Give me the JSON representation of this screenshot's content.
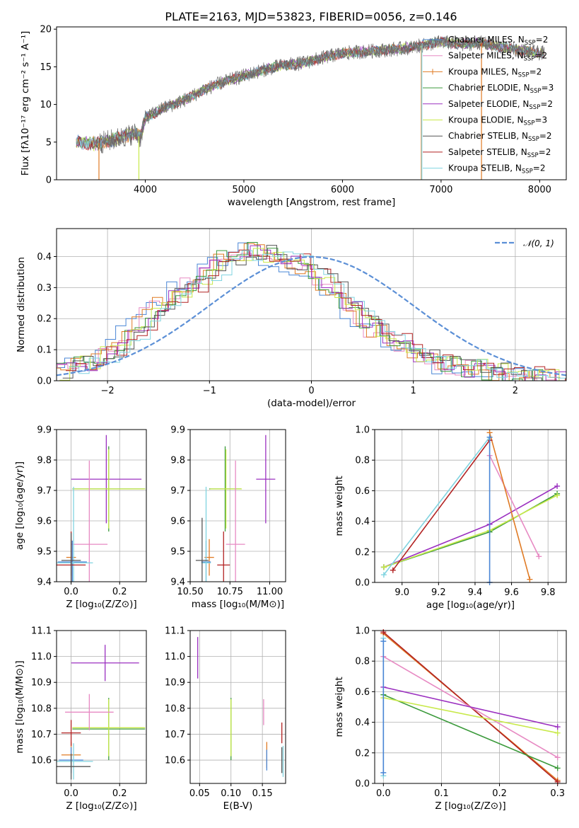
{
  "page": {
    "title": "PLATE=2163, MJD=53823, FIBERID=0056, z=0.146"
  },
  "colors": {
    "chabrier_miles": "#4a86d6",
    "salpeter_miles": "#e78ac3",
    "kroupa_miles": "#e07b25",
    "chabrier_elodie": "#3b9a3b",
    "salpeter_elodie": "#9b30c0",
    "kroupa_elodie": "#c8e94a",
    "chabrier_stelib": "#555555",
    "salpeter_stelib": "#b22222",
    "kroupa_stelib": "#80d4e0",
    "normal": "#5b8fd6"
  },
  "chart_data": [
    {
      "id": "spectrum",
      "type": "line",
      "xlabel": "wavelength [Angstrom, rest frame]",
      "ylabel": "Flux [fλ10⁻¹⁷ erg cm⁻² s⁻¹ A⁻¹]",
      "xlim": [
        3100,
        8270
      ],
      "ylim": [
        0,
        20.3
      ],
      "xticks": [
        "4000",
        "5000",
        "6000",
        "7000",
        "8000"
      ],
      "yticks": [
        "0",
        "5",
        "10",
        "15",
        "20"
      ],
      "legend_position": "top-right",
      "legend": [
        {
          "name": "Chabrier MILES, N",
          "sub": "SSP",
          "suffix": "=2",
          "color": "#4a86d6"
        },
        {
          "name": "Salpeter MILES, N",
          "sub": "SSP",
          "suffix": "=2",
          "color": "#e78ac3"
        },
        {
          "name": "Kroupa MILES, N",
          "sub": "SSP",
          "suffix": "=2",
          "color": "#e07b25"
        },
        {
          "name": "Chabrier ELODIE, N",
          "sub": "SSP",
          "suffix": "=3",
          "color": "#3b9a3b"
        },
        {
          "name": "Salpeter ELODIE, N",
          "sub": "SSP",
          "suffix": "=2",
          "color": "#9b30c0"
        },
        {
          "name": "Kroupa ELODIE, N",
          "sub": "SSP",
          "suffix": "=3",
          "color": "#c8e94a"
        },
        {
          "name": "Chabrier STELIB, N",
          "sub": "SSP",
          "suffix": "=2",
          "color": "#555555"
        },
        {
          "name": "Salpeter STELIB, N",
          "sub": "SSP",
          "suffix": "=2",
          "color": "#b22222"
        },
        {
          "name": "Kroupa STELIB, N",
          "sub": "SSP",
          "suffix": "=2",
          "color": "#80d4e0"
        }
      ],
      "continuum": [
        [
          3300,
          5.0
        ],
        [
          3500,
          4.8
        ],
        [
          3700,
          5.4
        ],
        [
          3900,
          6.2
        ],
        [
          3950,
          5.6
        ],
        [
          4000,
          8.2
        ],
        [
          4200,
          9.6
        ],
        [
          4400,
          10.6
        ],
        [
          4600,
          12.0
        ],
        [
          4800,
          13.0
        ],
        [
          5000,
          13.8
        ],
        [
          5200,
          14.6
        ],
        [
          5400,
          15.2
        ],
        [
          5600,
          15.5
        ],
        [
          5800,
          16.2
        ],
        [
          6000,
          16.8
        ],
        [
          6200,
          17.0
        ],
        [
          6400,
          17.2
        ],
        [
          6600,
          17.4
        ],
        [
          6800,
          17.8
        ],
        [
          7000,
          18.3
        ],
        [
          7200,
          18.0
        ],
        [
          7400,
          18.2
        ],
        [
          7600,
          17.6
        ],
        [
          7800,
          17.2
        ],
        [
          8000,
          16.8
        ]
      ],
      "model_range": [
        3300,
        8050
      ],
      "drops": [
        {
          "x": 3530,
          "color": "#e07b25"
        },
        {
          "x": 3935,
          "color": "#c8e94a"
        },
        {
          "x": 6800,
          "color": "#e07b25"
        },
        {
          "x": 6805,
          "color": "#80d4e0"
        },
        {
          "x": 7410,
          "color": "#e07b25"
        }
      ]
    },
    {
      "id": "residuals",
      "type": "area",
      "xlabel": "(data-model)/error",
      "ylabel": "Normed distribution",
      "xlim": [
        -2.5,
        2.5
      ],
      "ylim": [
        0,
        0.49
      ],
      "xticks": [
        "−2",
        "−1",
        "0",
        "1",
        "2"
      ],
      "yticks": [
        "0.0",
        "0.1",
        "0.2",
        "0.3",
        "0.4"
      ],
      "legend_position": "top-right",
      "normal_label": "𝒩(0, 1)",
      "bin_edges_start": -2.5,
      "bin_width": 0.1,
      "base_hist": [
        0.03,
        0.04,
        0.05,
        0.06,
        0.08,
        0.1,
        0.12,
        0.15,
        0.18,
        0.21,
        0.24,
        0.27,
        0.29,
        0.31,
        0.34,
        0.37,
        0.39,
        0.4,
        0.41,
        0.42,
        0.41,
        0.4,
        0.39,
        0.38,
        0.37,
        0.35,
        0.32,
        0.29,
        0.26,
        0.23,
        0.2,
        0.17,
        0.15,
        0.13,
        0.11,
        0.09,
        0.07,
        0.06,
        0.05,
        0.05,
        0.04,
        0.04,
        0.03,
        0.03,
        0.02,
        0.02,
        0.02,
        0.01,
        0.01,
        0.01
      ]
    },
    {
      "id": "age-vs-Z",
      "type": "scatter",
      "xlabel": "Z [log₁₀(Z/Z⊙)]",
      "ylabel": "age  [log₁₀(age/yr)]",
      "xlim": [
        -0.06,
        0.31
      ],
      "ylim": [
        9.4,
        9.9
      ],
      "xticks": [
        "0.0",
        "0.2"
      ],
      "yticks": [
        "9.4",
        "9.5",
        "9.6",
        "9.7",
        "9.8",
        "9.9"
      ],
      "points": [
        {
          "x": 0.145,
          "xerr": 0.145,
          "y": 9.737,
          "yerr": 0.145,
          "color": "#9b30c0"
        },
        {
          "x": 0.155,
          "xerr": 0.15,
          "y": 9.705,
          "yerr": 0.14,
          "color": "#3b9a3b"
        },
        {
          "x": 0.155,
          "xerr": 0.15,
          "y": 9.705,
          "yerr": 0.13,
          "color": "#c8e94a"
        },
        {
          "x": 0.075,
          "xerr": 0.075,
          "y": 9.523,
          "yerr": 0.275,
          "color": "#e78ac3"
        },
        {
          "x": 0.0,
          "xerr": 0.02,
          "y": 9.48,
          "yerr": 0.06,
          "color": "#e07b25"
        },
        {
          "x": 0.005,
          "xerr": 0.06,
          "y": 9.465,
          "yerr": 0.07,
          "color": "#4a86d6"
        },
        {
          "x": 0.01,
          "xerr": 0.08,
          "y": 9.462,
          "yerr": 0.25,
          "color": "#80d4e0"
        },
        {
          "x": 0.0,
          "xerr": 0.06,
          "y": 9.455,
          "yerr": 0.11,
          "color": "#b22222"
        },
        {
          "x": 0.0,
          "xerr": 0.04,
          "y": 9.47,
          "yerr": 0.09,
          "color": "#555555"
        }
      ]
    },
    {
      "id": "age-vs-mass",
      "type": "scatter",
      "xlabel": "mass [log₁₀(M/M⊙)]",
      "ylabel": "",
      "xlim": [
        10.5,
        11.1
      ],
      "ylim": [
        9.4,
        9.9
      ],
      "xticks": [
        "10.50",
        "10.75",
        "11.00"
      ],
      "yticks": [
        "9.4",
        "9.5",
        "9.6",
        "9.7",
        "9.8",
        "9.9"
      ],
      "points": [
        {
          "x": 10.975,
          "xerr": 0.06,
          "y": 9.737,
          "yerr": 0.145,
          "color": "#9b30c0"
        },
        {
          "x": 10.72,
          "xerr": 0.1,
          "y": 9.705,
          "yerr": 0.14,
          "color": "#3b9a3b"
        },
        {
          "x": 10.725,
          "xerr": 0.1,
          "y": 9.705,
          "yerr": 0.13,
          "color": "#c8e94a"
        },
        {
          "x": 10.785,
          "xerr": 0.06,
          "y": 9.523,
          "yerr": 0.275,
          "color": "#e78ac3"
        },
        {
          "x": 10.62,
          "xerr": 0.03,
          "y": 9.48,
          "yerr": 0.06,
          "color": "#e07b25"
        },
        {
          "x": 10.6,
          "xerr": 0.03,
          "y": 9.465,
          "yerr": 0.07,
          "color": "#4a86d6"
        },
        {
          "x": 10.6,
          "xerr": 0.03,
          "y": 9.462,
          "yerr": 0.25,
          "color": "#80d4e0"
        },
        {
          "x": 10.71,
          "xerr": 0.04,
          "y": 9.455,
          "yerr": 0.11,
          "color": "#b22222"
        },
        {
          "x": 10.575,
          "xerr": 0.04,
          "y": 9.47,
          "yerr": 0.14,
          "color": "#555555"
        }
      ]
    },
    {
      "id": "weight-vs-age",
      "type": "line",
      "xlabel": "age  [log₁₀(age/yr)]",
      "ylabel": "mass weight",
      "xlim": [
        8.85,
        9.9
      ],
      "ylim": [
        0,
        1
      ],
      "xticks": [
        "9.0",
        "9.2",
        "9.4",
        "9.6",
        "9.8"
      ],
      "yticks": [
        "0.0",
        "0.2",
        "0.4",
        "0.6",
        "0.8",
        "1.0"
      ],
      "series": [
        {
          "color": "#9b30c0",
          "points": [
            [
              8.9,
              0.1
            ],
            [
              9.48,
              0.38
            ],
            [
              9.85,
              0.63
            ]
          ]
        },
        {
          "color": "#3b9a3b",
          "points": [
            [
              8.9,
              0.1
            ],
            [
              9.48,
              0.33
            ],
            [
              9.85,
              0.58
            ]
          ]
        },
        {
          "color": "#c8e94a",
          "points": [
            [
              8.9,
              0.1
            ],
            [
              9.48,
              0.34
            ],
            [
              9.85,
              0.57
            ]
          ]
        },
        {
          "color": "#e78ac3",
          "points": [
            [
              9.48,
              0.83
            ],
            [
              9.75,
              0.17
            ]
          ]
        },
        {
          "color": "#e07b25",
          "points": [
            [
              9.48,
              0.98
            ],
            [
              9.7,
              0.02
            ]
          ]
        },
        {
          "color": "#b22222",
          "points": [
            [
              8.95,
              0.08
            ],
            [
              9.48,
              0.93
            ]
          ]
        },
        {
          "color": "#80d4e0",
          "points": [
            [
              8.9,
              0.05
            ],
            [
              9.48,
              0.95
            ]
          ]
        },
        {
          "color": "#4a86d6",
          "points": [
            [
              9.48,
              0.0
            ],
            [
              9.48,
              0.95
            ]
          ]
        }
      ]
    },
    {
      "id": "mass-vs-Z",
      "type": "scatter",
      "xlabel": "Z [log₁₀(Z/Z⊙)]",
      "ylabel": "mass [log₁₀(M/M⊙)]",
      "xlim": [
        -0.06,
        0.31
      ],
      "ylim": [
        10.51,
        11.1
      ],
      "xticks": [
        "0.0",
        "0.2"
      ],
      "yticks": [
        "10.6",
        "10.7",
        "10.8",
        "10.9",
        "11.0",
        "11.1"
      ],
      "points": [
        {
          "x": 0.14,
          "xerr": 0.14,
          "y": 10.975,
          "yerr": 0.07,
          "color": "#9b30c0"
        },
        {
          "x": 0.155,
          "xerr": 0.15,
          "y": 10.72,
          "yerr": 0.12,
          "color": "#3b9a3b"
        },
        {
          "x": 0.155,
          "xerr": 0.15,
          "y": 10.725,
          "yerr": 0.11,
          "color": "#c8e94a"
        },
        {
          "x": 0.075,
          "xerr": 0.1,
          "y": 10.785,
          "yerr": 0.07,
          "color": "#e78ac3"
        },
        {
          "x": 0.0,
          "xerr": 0.04,
          "y": 10.62,
          "yerr": 0.05,
          "color": "#e07b25"
        },
        {
          "x": 0.0,
          "xerr": 0.05,
          "y": 10.6,
          "yerr": 0.05,
          "color": "#4a86d6"
        },
        {
          "x": 0.01,
          "xerr": 0.08,
          "y": 10.595,
          "yerr": 0.07,
          "color": "#80d4e0"
        },
        {
          "x": 0.0,
          "xerr": 0.04,
          "y": 10.705,
          "yerr": 0.05,
          "color": "#b22222"
        },
        {
          "x": 0.0,
          "xerr": 0.08,
          "y": 10.575,
          "yerr": 0.05,
          "color": "#555555"
        }
      ]
    },
    {
      "id": "mass-vs-ebv",
      "type": "scatter",
      "xlabel": "E(B-V)",
      "ylabel": "",
      "xlim": [
        0.035,
        0.187
      ],
      "ylim": [
        10.51,
        11.1
      ],
      "xticks": [
        "0.05",
        "0.10",
        "0.15"
      ],
      "yticks": [
        "10.6",
        "10.7",
        "10.8",
        "10.9",
        "11.0",
        "11.1"
      ],
      "points": [
        {
          "x": 0.047,
          "xerr": 0.0,
          "y": 10.995,
          "yerr": 0.08,
          "color": "#9b30c0"
        },
        {
          "x": 0.1,
          "xerr": 0.0,
          "y": 10.72,
          "yerr": 0.12,
          "color": "#3b9a3b"
        },
        {
          "x": 0.1,
          "xerr": 0.0,
          "y": 10.725,
          "yerr": 0.11,
          "color": "#c8e94a"
        },
        {
          "x": 0.152,
          "xerr": 0.0,
          "y": 10.785,
          "yerr": 0.05,
          "color": "#e78ac3"
        },
        {
          "x": 0.157,
          "xerr": 0.0,
          "y": 10.62,
          "yerr": 0.05,
          "color": "#e07b25"
        },
        {
          "x": 0.157,
          "xerr": 0.0,
          "y": 10.6,
          "yerr": 0.04,
          "color": "#4a86d6"
        },
        {
          "x": 0.183,
          "xerr": 0.0,
          "y": 10.595,
          "yerr": 0.06,
          "color": "#80d4e0"
        },
        {
          "x": 0.181,
          "xerr": 0.0,
          "y": 10.705,
          "yerr": 0.04,
          "color": "#b22222"
        },
        {
          "x": 0.181,
          "xerr": 0.0,
          "y": 10.6,
          "yerr": 0.05,
          "color": "#555555"
        }
      ]
    },
    {
      "id": "weight-vs-Z",
      "type": "line",
      "xlabel": "Z [log₁₀(Z/Z⊙)]",
      "ylabel": "mass weight",
      "xlim": [
        -0.015,
        0.315
      ],
      "ylim": [
        0,
        1
      ],
      "xticks": [
        "0.0",
        "0.1",
        "0.2",
        "0.3"
      ],
      "yticks": [
        "0.0",
        "0.2",
        "0.4",
        "0.6",
        "0.8",
        "1.0"
      ],
      "series": [
        {
          "color": "#e07b25",
          "points": [
            [
              0.0,
              0.98
            ],
            [
              0.3,
              0.02
            ]
          ]
        },
        {
          "color": "#b22222",
          "points": [
            [
              0.0,
              0.99
            ],
            [
              0.3,
              0.01
            ]
          ]
        },
        {
          "color": "#e78ac3",
          "points": [
            [
              0.0,
              0.83
            ],
            [
              0.3,
              0.17
            ]
          ]
        },
        {
          "color": "#9b30c0",
          "points": [
            [
              0.0,
              0.63
            ],
            [
              0.3,
              0.37
            ]
          ]
        },
        {
          "color": "#3b9a3b",
          "points": [
            [
              0.0,
              0.58
            ],
            [
              0.3,
              0.1
            ]
          ]
        },
        {
          "color": "#c8e94a",
          "points": [
            [
              0.0,
              0.56
            ],
            [
              0.3,
              0.33
            ]
          ]
        },
        {
          "color": "#80d4e0",
          "points": [
            [
              0.0,
              0.05
            ],
            [
              0.0,
              0.95
            ]
          ]
        },
        {
          "color": "#4a86d6",
          "points": [
            [
              0.0,
              0.07
            ],
            [
              0.0,
              0.93
            ]
          ]
        }
      ]
    }
  ]
}
